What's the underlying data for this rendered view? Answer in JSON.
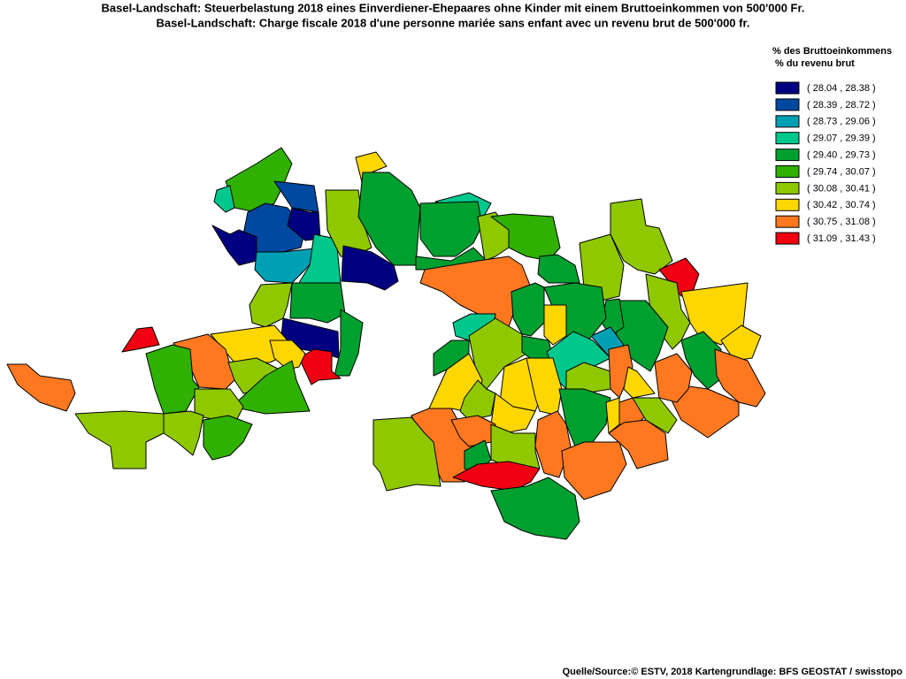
{
  "title": "Basel-Landschaft: Steuerbelastung 2018 eines Einverdiener-Ehepaares ohne Kinder mit einem Bruttoeinkommen von 500'000 Fr.",
  "subtitle": "Basel-Landschaft: Charge fiscale 2018 d'une personne mariée sans enfant avec un revenu brut de 500'000 fr.",
  "legend": {
    "title": [
      "% des Bruttoeinkommens",
      "% du revenu brut"
    ],
    "items": [
      {
        "label": "( 28.04 , 28.38 )",
        "color": "#000080"
      },
      {
        "label": "( 28.39 , 28.72 )",
        "color": "#0048a0"
      },
      {
        "label": "( 28.73 , 29.06 )",
        "color": "#00a0b4"
      },
      {
        "label": "( 29.07 , 29.39 )",
        "color": "#00c88c"
      },
      {
        "label": "( 29.40 , 29.73 )",
        "color": "#00a030"
      },
      {
        "label": "( 29.74 , 30.07 )",
        "color": "#30b000"
      },
      {
        "label": "( 30.08 , 30.41 )",
        "color": "#90c800"
      },
      {
        "label": "( 30.42 , 30.74 )",
        "color": "#ffd700"
      },
      {
        "label": "( 30.75 , 31.08 )",
        "color": "#ff7820"
      },
      {
        "label": "( 31.09 , 31.43 )",
        "color": "#f00010"
      }
    ]
  },
  "source": "Quelle/Source:© ESTV, 2018 Kartengrundlage: BFS GEOSTAT / swisstopo"
}
